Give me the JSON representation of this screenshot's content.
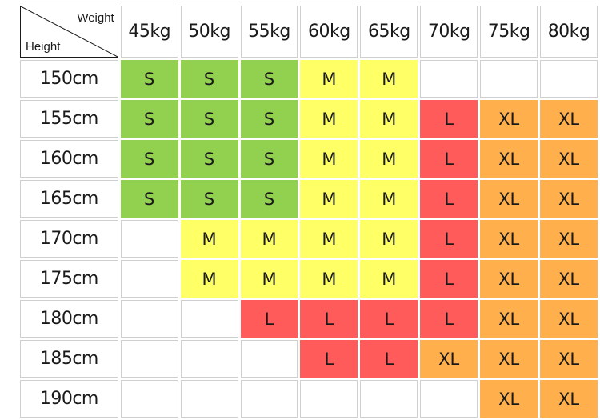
{
  "header": {
    "corner_weight_label": "Weight",
    "corner_height_label": "Height",
    "weights": [
      "45kg",
      "50kg",
      "55kg",
      "60kg",
      "65kg",
      "70kg",
      "75kg",
      "80kg"
    ]
  },
  "rows": [
    {
      "height": "150cm",
      "sizes": [
        "S",
        "S",
        "S",
        "M",
        "M",
        "",
        "",
        ""
      ]
    },
    {
      "height": "155cm",
      "sizes": [
        "S",
        "S",
        "S",
        "M",
        "M",
        "L",
        "XL",
        "XL"
      ]
    },
    {
      "height": "160cm",
      "sizes": [
        "S",
        "S",
        "S",
        "M",
        "M",
        "L",
        "XL",
        "XL"
      ]
    },
    {
      "height": "165cm",
      "sizes": [
        "S",
        "S",
        "S",
        "M",
        "M",
        "L",
        "XL",
        "XL"
      ]
    },
    {
      "height": "170cm",
      "sizes": [
        "",
        "M",
        "M",
        "M",
        "M",
        "L",
        "XL",
        "XL"
      ]
    },
    {
      "height": "175cm",
      "sizes": [
        "",
        "M",
        "M",
        "M",
        "M",
        "L",
        "XL",
        "XL"
      ]
    },
    {
      "height": "180cm",
      "sizes": [
        "",
        "",
        "L",
        "L",
        "L",
        "L",
        "XL",
        "XL"
      ]
    },
    {
      "height": "185cm",
      "sizes": [
        "",
        "",
        "",
        "L",
        "L",
        "XL",
        "XL",
        "XL"
      ]
    },
    {
      "height": "190cm",
      "sizes": [
        "",
        "",
        "",
        "",
        "",
        "",
        "XL",
        "XL"
      ]
    }
  ],
  "colors": {
    "S": "#92d050",
    "M": "#ffff66",
    "L": "#ff5b5b",
    "XL": "#ffb04d"
  }
}
